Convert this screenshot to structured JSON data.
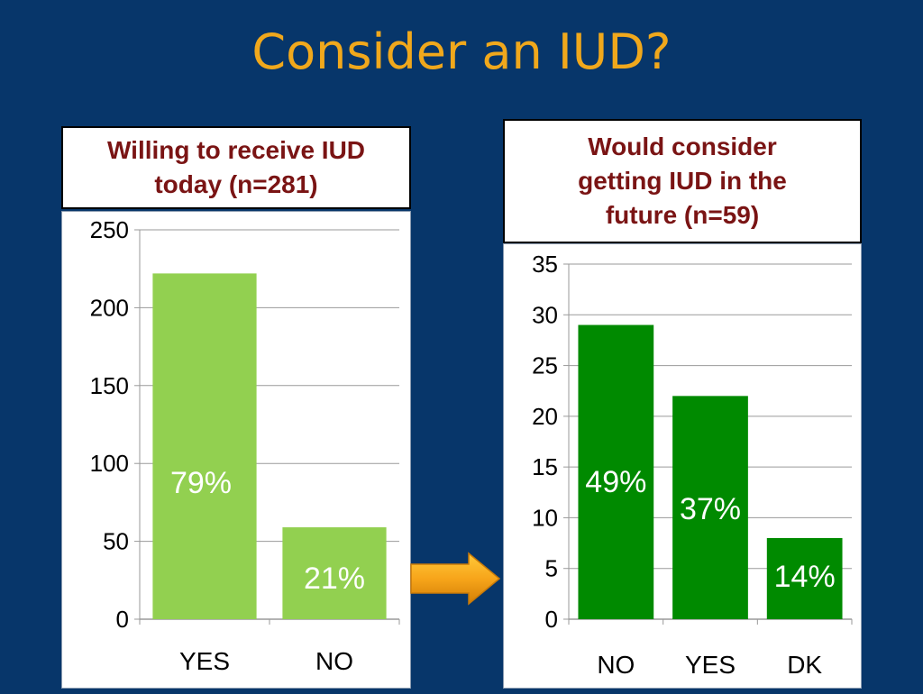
{
  "slide": {
    "title": "Consider an IUD?"
  },
  "colors": {
    "background": "#07366a",
    "title": "#f0a81c",
    "box_title_text": "#7a1414",
    "bar_left": "#92d050",
    "bar_right": "#008a00",
    "arrow": "#f7a51a"
  },
  "chart_data": [
    {
      "type": "bar",
      "title": "Willing to receive IUD today (n=281)",
      "categories": [
        "YES",
        "NO"
      ],
      "values": [
        222,
        59
      ],
      "data_labels": [
        "79%",
        "21%"
      ],
      "ylim": [
        0,
        250
      ],
      "yticks": [
        0,
        50,
        100,
        150,
        200,
        250
      ],
      "grid": true,
      "legend": "none"
    },
    {
      "type": "bar",
      "title": "Would consider getting IUD in the future (n=59)",
      "categories": [
        "NO",
        "YES",
        "DK"
      ],
      "values": [
        29,
        22,
        8
      ],
      "data_labels": [
        "49%",
        "37%",
        "14%"
      ],
      "ylim": [
        0,
        35
      ],
      "yticks": [
        0,
        5,
        10,
        15,
        20,
        25,
        30,
        35
      ],
      "grid": true,
      "legend": "none"
    }
  ]
}
